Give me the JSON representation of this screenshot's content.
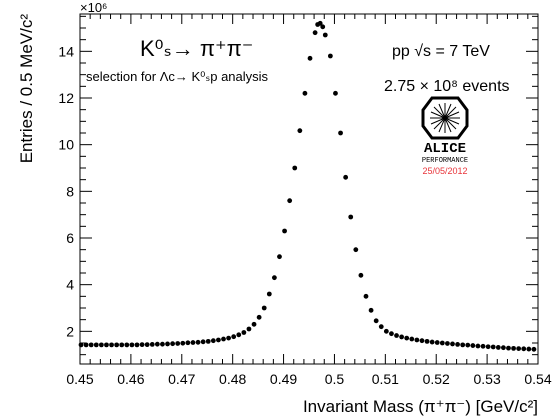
{
  "chart_data": {
    "type": "scatter",
    "title": "",
    "xlabel": "Invariant Mass (π⁺π⁻) [GeV/c²]",
    "ylabel": "Entries / 0.5 MeV/c²",
    "x_unit": "GeV/c²",
    "xlim": [
      0.45,
      0.54
    ],
    "ylim": [
      0.6,
      15.6
    ],
    "y_exponent_label": "×10⁶",
    "x_ticks": [
      "0.45",
      "0.46",
      "0.47",
      "0.48",
      "0.49",
      "0.5",
      "0.51",
      "0.52",
      "0.53",
      "0.54"
    ],
    "y_ticks": [
      "2",
      "4",
      "6",
      "8",
      "10",
      "12",
      "14"
    ],
    "grid": false,
    "series": [
      {
        "marker": "filled-circle",
        "color": "#000000",
        "points": [
          [
            0.4502,
            1.42
          ],
          [
            0.4512,
            1.42
          ],
          [
            0.4522,
            1.42
          ],
          [
            0.4532,
            1.42
          ],
          [
            0.4542,
            1.42
          ],
          [
            0.4552,
            1.42
          ],
          [
            0.4562,
            1.42
          ],
          [
            0.4572,
            1.42
          ],
          [
            0.4582,
            1.42
          ],
          [
            0.4592,
            1.42
          ],
          [
            0.4602,
            1.42
          ],
          [
            0.4612,
            1.42
          ],
          [
            0.4622,
            1.43
          ],
          [
            0.4632,
            1.43
          ],
          [
            0.4642,
            1.44
          ],
          [
            0.4652,
            1.45
          ],
          [
            0.4662,
            1.45
          ],
          [
            0.4672,
            1.46
          ],
          [
            0.4682,
            1.47
          ],
          [
            0.4692,
            1.48
          ],
          [
            0.4702,
            1.49
          ],
          [
            0.4712,
            1.51
          ],
          [
            0.4722,
            1.52
          ],
          [
            0.4732,
            1.53
          ],
          [
            0.4742,
            1.55
          ],
          [
            0.4752,
            1.57
          ],
          [
            0.4762,
            1.6
          ],
          [
            0.4772,
            1.63
          ],
          [
            0.4782,
            1.67
          ],
          [
            0.4792,
            1.71
          ],
          [
            0.4802,
            1.77
          ],
          [
            0.4812,
            1.85
          ],
          [
            0.4822,
            1.95
          ],
          [
            0.4832,
            2.1
          ],
          [
            0.4842,
            2.3
          ],
          [
            0.4852,
            2.6
          ],
          [
            0.4862,
            3.0
          ],
          [
            0.4872,
            3.6
          ],
          [
            0.4882,
            4.3
          ],
          [
            0.4892,
            5.2
          ],
          [
            0.4902,
            6.3
          ],
          [
            0.4912,
            7.6
          ],
          [
            0.4922,
            9.0
          ],
          [
            0.4932,
            10.6
          ],
          [
            0.4942,
            12.2
          ],
          [
            0.4952,
            13.7
          ],
          [
            0.4962,
            14.8
          ],
          [
            0.4967,
            15.15
          ],
          [
            0.4972,
            15.2
          ],
          [
            0.4977,
            15.05
          ],
          [
            0.4982,
            14.7
          ],
          [
            0.4992,
            13.8
          ],
          [
            0.5002,
            12.2
          ],
          [
            0.5012,
            10.5
          ],
          [
            0.5022,
            8.6
          ],
          [
            0.5032,
            6.9
          ],
          [
            0.5042,
            5.5
          ],
          [
            0.5052,
            4.4
          ],
          [
            0.5062,
            3.5
          ],
          [
            0.5072,
            2.9
          ],
          [
            0.5082,
            2.45
          ],
          [
            0.5092,
            2.2
          ],
          [
            0.5102,
            2.0
          ],
          [
            0.5112,
            1.9
          ],
          [
            0.5122,
            1.82
          ],
          [
            0.5132,
            1.76
          ],
          [
            0.5142,
            1.71
          ],
          [
            0.5152,
            1.67
          ],
          [
            0.5162,
            1.63
          ],
          [
            0.5172,
            1.6
          ],
          [
            0.5182,
            1.57
          ],
          [
            0.5192,
            1.54
          ],
          [
            0.5202,
            1.52
          ],
          [
            0.5212,
            1.5
          ],
          [
            0.5222,
            1.48
          ],
          [
            0.5232,
            1.46
          ],
          [
            0.5242,
            1.44
          ],
          [
            0.5252,
            1.42
          ],
          [
            0.5262,
            1.41
          ],
          [
            0.5272,
            1.39
          ],
          [
            0.5282,
            1.37
          ],
          [
            0.5292,
            1.36
          ],
          [
            0.5302,
            1.34
          ],
          [
            0.5312,
            1.33
          ],
          [
            0.5322,
            1.31
          ],
          [
            0.5332,
            1.3
          ],
          [
            0.5342,
            1.28
          ],
          [
            0.5352,
            1.27
          ],
          [
            0.5362,
            1.26
          ],
          [
            0.5372,
            1.25
          ],
          [
            0.5382,
            1.24
          ],
          [
            0.5392,
            1.23
          ]
        ]
      }
    ],
    "annotations": {
      "decay": "K⁰ₛ→ π⁺π⁻",
      "selection": "selection for Λᴄ→ K⁰ₛp analysis",
      "energy": "pp √s = 7 TeV",
      "events": "2.75 × 10⁸ events",
      "logo_text": "ALICE",
      "logo_sub": "PERFORMANCE",
      "date": "25/05/2012"
    },
    "colors": {
      "points": "#000000",
      "date": "#e8343a",
      "axis": "#000000"
    }
  }
}
